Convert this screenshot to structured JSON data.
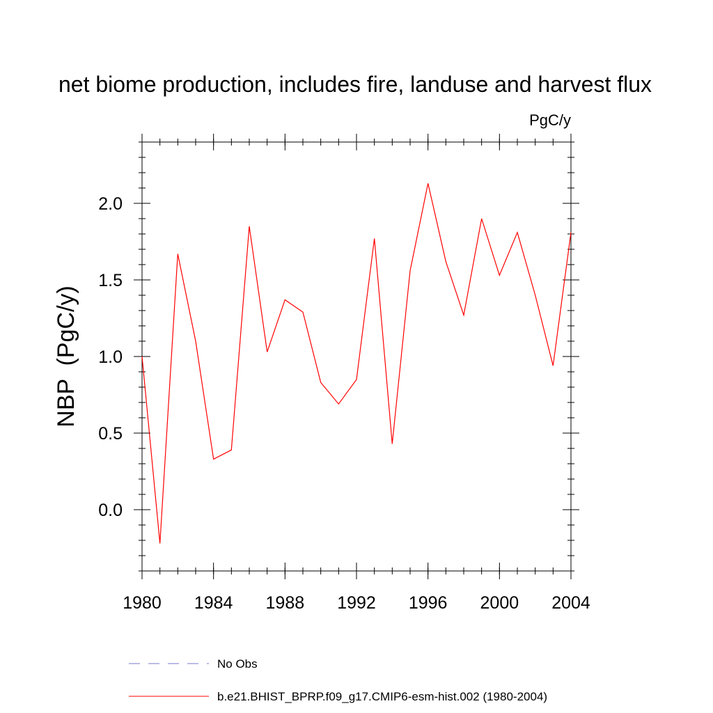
{
  "chart_data": {
    "type": "line",
    "title": "net biome production, includes fire, landuse and harvest flux",
    "units": "PgC/y",
    "xlabel": "",
    "ylabel": "NBP  (PgC/y)",
    "xlim": [
      1980,
      2004
    ],
    "ylim": [
      -0.4,
      2.4
    ],
    "x_ticks": [
      "1980",
      "1984",
      "1988",
      "1992",
      "1996",
      "2000",
      "2004"
    ],
    "x_tick_values": [
      1980,
      1984,
      1988,
      1992,
      1996,
      2000,
      2004
    ],
    "y_ticks": [
      "0.0",
      "0.5",
      "1.0",
      "1.5",
      "2.0"
    ],
    "y_tick_values": [
      0.0,
      0.5,
      1.0,
      1.5,
      2.0
    ],
    "series": [
      {
        "name": "b.e21.BHIST_BPRP.f09_g17.CMIP6-esm-hist.002 (1980-2004)",
        "color": "#ff0000",
        "style": "solid",
        "x": [
          1980,
          1981,
          1982,
          1983,
          1984,
          1985,
          1986,
          1987,
          1988,
          1989,
          1990,
          1991,
          1992,
          1993,
          1994,
          1995,
          1996,
          1997,
          1998,
          1999,
          2000,
          2001,
          2002,
          2003,
          2004
        ],
        "values": [
          1.0,
          -0.22,
          1.67,
          1.1,
          0.33,
          0.39,
          1.85,
          1.03,
          1.37,
          1.29,
          0.83,
          0.69,
          0.85,
          1.77,
          0.43,
          1.56,
          2.13,
          1.62,
          1.27,
          1.9,
          1.53,
          1.81,
          1.4,
          0.94,
          1.81
        ]
      }
    ],
    "legend": [
      {
        "label": "No Obs",
        "color": "#7777cc",
        "style": "dashed"
      },
      {
        "label": "b.e21.BHIST_BPRP.f09_g17.CMIP6-esm-hist.002 (1980-2004)",
        "color": "#ff0000",
        "style": "solid"
      }
    ]
  }
}
